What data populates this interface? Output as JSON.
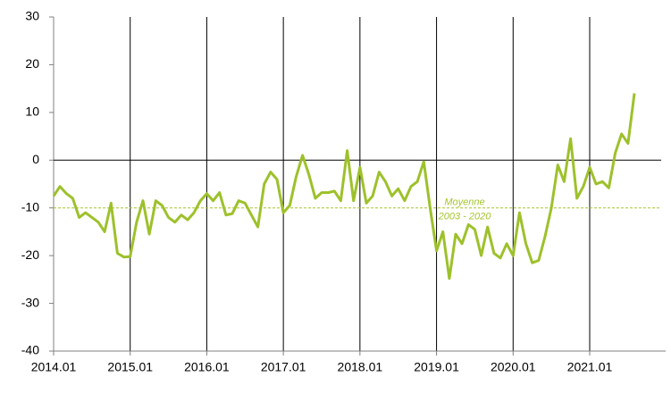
{
  "chart_data": {
    "type": "line",
    "categories": [
      "2014.01",
      null,
      null,
      null,
      null,
      null,
      null,
      null,
      null,
      null,
      null,
      null,
      "2015.01",
      null,
      null,
      null,
      null,
      null,
      null,
      null,
      null,
      null,
      null,
      null,
      "2016.01",
      null,
      null,
      null,
      null,
      null,
      null,
      null,
      null,
      null,
      null,
      null,
      "2017.01",
      null,
      null,
      null,
      null,
      null,
      null,
      null,
      null,
      null,
      null,
      null,
      "2018.01",
      null,
      null,
      null,
      null,
      null,
      null,
      null,
      null,
      null,
      null,
      null,
      "2019.01",
      null,
      null,
      null,
      null,
      null,
      null,
      null,
      null,
      null,
      null,
      null,
      "2020.01",
      null,
      null,
      null,
      null,
      null,
      null,
      null,
      null,
      null,
      null,
      null,
      "2021.01",
      null,
      null,
      null,
      null,
      null,
      null,
      null
    ],
    "series": [
      {
        "color": "#9dc12b",
        "values": [
          -7.5,
          -5.5,
          -7,
          -8,
          -12,
          -11,
          -12,
          -13,
          -15,
          -9,
          -19.5,
          -20.3,
          -20.2,
          -13,
          -8.5,
          -15.5,
          -8.5,
          -9.5,
          -12,
          -13,
          -11.5,
          -12.5,
          -11,
          -8.5,
          -7,
          -8.5,
          -6.8,
          -11.5,
          -11.2,
          -8.5,
          -9,
          -11.5,
          -14,
          -5,
          -2.5,
          -4,
          -11,
          -9.5,
          -3.5,
          1,
          -3,
          -8,
          -6.8,
          -6.8,
          -6.5,
          -8.5,
          2,
          -8.5,
          -1.5,
          -9,
          -7.5,
          -2.5,
          -4.5,
          -7.5,
          -6,
          -8.5,
          -5.5,
          -4.5,
          -0.3,
          -10,
          -19,
          -15,
          -24.8,
          -15.5,
          -17.5,
          -13.5,
          -14.5,
          -20,
          -14,
          -19.5,
          -20.5,
          -17.5,
          -20,
          -11,
          -17.5,
          -21.5,
          -21,
          -16,
          -10,
          -1,
          -4.5,
          4.5,
          -8,
          -5.5,
          -1.5,
          -5,
          -4.5,
          -5.8,
          1.5,
          5.5,
          3.5,
          14
        ]
      }
    ],
    "ylim": [
      -40,
      30
    ],
    "yticks": [
      -40,
      -30,
      -20,
      -10,
      0,
      10,
      20,
      30
    ],
    "mean_line": {
      "value": -10,
      "color": "#a5c62e",
      "label": [
        "Moyenne",
        "2003 - 2020"
      ]
    }
  }
}
